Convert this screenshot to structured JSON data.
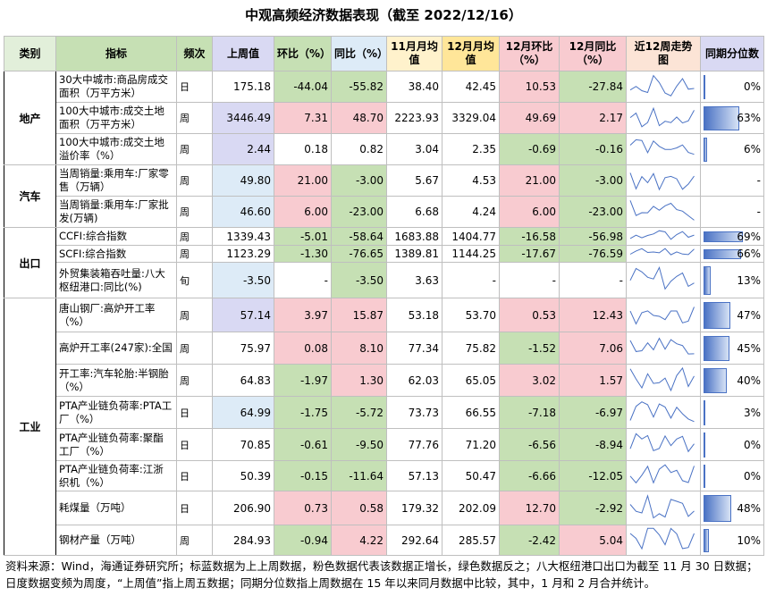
{
  "title": "中观高频经济数据表现（截至 2022/12/16）",
  "table": {
    "header": [
      "类别",
      "指标",
      "频次",
      "上周值",
      "环比（%）",
      "同比（%）",
      "11月月均值",
      "12月月均值",
      "12月环比（%）",
      "12月同比（%）",
      "近12周走势图",
      "同期分位数"
    ],
    "groups": [
      {
        "category": "地产",
        "rows": [
          {
            "indicator": "30大中城市:商品房成交面积（万平方米）",
            "freq": "日",
            "cells": [
              "175.18",
              "-44.04",
              "-55.82",
              "38.40",
              "42.45",
              "10.53",
              "-27.84"
            ],
            "cell_colors": [
              "",
              "#c6e0b4",
              "#c6e0b4",
              "",
              "",
              "#f8cbd0",
              "#c6e0b4"
            ],
            "percentile": "0%"
          },
          {
            "indicator": "100大中城市:成交土地面积（万平方米）",
            "freq": "周",
            "cells": [
              "3446.49",
              "7.31",
              "48.70",
              "2223.93",
              "3329.04",
              "49.69",
              "2.17"
            ],
            "cell_colors": [
              "#d9d9f3",
              "#f8cbd0",
              "#f8cbd0",
              "",
              "",
              "#f8cbd0",
              "#f8cbd0"
            ],
            "percentile": "63%"
          },
          {
            "indicator": "100大中城市:成交土地溢价率（%）",
            "freq": "周",
            "cells": [
              "2.44",
              "0.18",
              "0.82",
              "3.04",
              "2.35",
              "-0.69",
              "-0.16"
            ],
            "cell_colors": [
              "#d9d9f3",
              "",
              "",
              "",
              "",
              "#c6e0b4",
              "#c6e0b4"
            ],
            "percentile": "6%"
          }
        ]
      },
      {
        "category": "汽车",
        "rows": [
          {
            "indicator": "当周销量:乘用车:厂家零售（万辆）",
            "freq": "周",
            "cells": [
              "49.80",
              "21.00",
              "-3.00",
              "5.67",
              "4.53",
              "21.00",
              "-3.00"
            ],
            "cell_colors": [
              "#ddebf7",
              "#f8cbd0",
              "#c6e0b4",
              "",
              "",
              "#f8cbd0",
              "#c6e0b4"
            ],
            "percentile": "-"
          },
          {
            "indicator": "当周销量:乘用车:厂家批发(万辆)",
            "freq": "周",
            "cells": [
              "46.60",
              "6.00",
              "-23.00",
              "6.68",
              "4.24",
              "6.00",
              "-23.00"
            ],
            "cell_colors": [
              "#ddebf7",
              "#f8cbd0",
              "#c6e0b4",
              "",
              "",
              "#f8cbd0",
              "#c6e0b4"
            ],
            "percentile": "-"
          }
        ]
      },
      {
        "category": "出口",
        "rows": [
          {
            "indicator": "CCFI:综合指数",
            "freq": "周",
            "cells": [
              "1339.43",
              "-5.01",
              "-58.64",
              "1683.88",
              "1404.77",
              "-16.58",
              "-56.98"
            ],
            "cell_colors": [
              "",
              "#c6e0b4",
              "#c6e0b4",
              "",
              "",
              "#c6e0b4",
              "#c6e0b4"
            ],
            "percentile": "69%"
          },
          {
            "indicator": "SCFI:综合指数",
            "freq": "周",
            "cells": [
              "1123.29",
              "-1.30",
              "-76.65",
              "1389.81",
              "1144.25",
              "-17.67",
              "-76.59"
            ],
            "cell_colors": [
              "",
              "#c6e0b4",
              "#c6e0b4",
              "",
              "",
              "#c6e0b4",
              "#c6e0b4"
            ],
            "percentile": "66%"
          },
          {
            "indicator": "外贸集装箱吞吐量:八大枢纽港口:同比(%)",
            "freq": "旬",
            "cells": [
              "-3.50",
              "-",
              "-3.50",
              "3.63",
              "-",
              "-",
              "-"
            ],
            "cell_colors": [
              "#ddebf7",
              "",
              "#c6e0b4",
              "",
              "",
              "",
              ""
            ],
            "percentile": "13%"
          }
        ]
      },
      {
        "category": "工业",
        "rows": [
          {
            "indicator": "唐山钢厂:高炉开工率（%）",
            "freq": "周",
            "cells": [
              "57.14",
              "3.97",
              "15.87",
              "53.18",
              "53.70",
              "0.53",
              "12.43"
            ],
            "cell_colors": [
              "#d9d9f3",
              "#f8cbd0",
              "#f8cbd0",
              "",
              "",
              "#f8cbd0",
              "#f8cbd0"
            ],
            "percentile": "47%"
          },
          {
            "indicator": "高炉开工率(247家):全国",
            "freq": "周",
            "cells": [
              "75.97",
              "0.08",
              "8.10",
              "77.34",
              "75.82",
              "-1.52",
              "7.06"
            ],
            "cell_colors": [
              "",
              "#f8cbd0",
              "#f8cbd0",
              "",
              "",
              "#c6e0b4",
              "#f8cbd0"
            ],
            "percentile": "45%"
          },
          {
            "indicator": "开工率:汽车轮胎:半钢胎（%）",
            "freq": "周",
            "cells": [
              "64.83",
              "-1.97",
              "1.30",
              "62.03",
              "65.05",
              "3.02",
              "1.57"
            ],
            "cell_colors": [
              "",
              "#c6e0b4",
              "#f8cbd0",
              "",
              "",
              "#f8cbd0",
              "#f8cbd0"
            ],
            "percentile": "40%"
          },
          {
            "indicator": "PTA产业链负荷率:PTA工厂（%）",
            "freq": "日",
            "cells": [
              "64.99",
              "-1.75",
              "-5.72",
              "73.73",
              "66.55",
              "-7.18",
              "-6.97"
            ],
            "cell_colors": [
              "#ddebf7",
              "#c6e0b4",
              "#c6e0b4",
              "",
              "",
              "#c6e0b4",
              "#c6e0b4"
            ],
            "percentile": "3%"
          },
          {
            "indicator": "PTA产业链负荷率:聚酯工厂（%）",
            "freq": "日",
            "cells": [
              "70.85",
              "-0.61",
              "-9.50",
              "77.76",
              "71.20",
              "-6.56",
              "-8.94"
            ],
            "cell_colors": [
              "",
              "#c6e0b4",
              "#c6e0b4",
              "",
              "",
              "#c6e0b4",
              "#c6e0b4"
            ],
            "percentile": "0%"
          },
          {
            "indicator": "PTA产业链负荷率:江浙织机（%）",
            "freq": "日",
            "cells": [
              "50.39",
              "-0.15",
              "-11.64",
              "57.13",
              "50.47",
              "-6.66",
              "-12.05"
            ],
            "cell_colors": [
              "",
              "#c6e0b4",
              "#c6e0b4",
              "",
              "",
              "#c6e0b4",
              "#c6e0b4"
            ],
            "percentile": "0%"
          },
          {
            "indicator": "耗煤量（万吨）",
            "freq": "日",
            "cells": [
              "206.90",
              "0.73",
              "0.58",
              "179.32",
              "202.09",
              "12.70",
              "-2.92"
            ],
            "cell_colors": [
              "",
              "#f8cbd0",
              "#f8cbd0",
              "",
              "",
              "#f8cbd0",
              "#c6e0b4"
            ],
            "percentile": "48%"
          },
          {
            "indicator": "钢材产量（万吨）",
            "freq": "周",
            "cells": [
              "284.93",
              "-0.94",
              "4.22",
              "292.64",
              "285.57",
              "-2.42",
              "5.04"
            ],
            "cell_colors": [
              "",
              "#c6e0b4",
              "#f8cbd0",
              "",
              "",
              "#c6e0b4",
              "#f8cbd0"
            ],
            "percentile": "10%"
          }
        ]
      }
    ]
  },
  "footnote": "资料来源：Wind，海通证券研究所；标蓝数据为上上周数据，粉色数据代表该数据正增长，绿色数据反之；八大枢纽港口出口为截至 11 月 30 日数据；日度数据变频为周度，“上周值”指上周五数据；同期分位数指上周数据在 15 年以来同月数据中比较，其中，1 月和 2 月合并统计。"
}
